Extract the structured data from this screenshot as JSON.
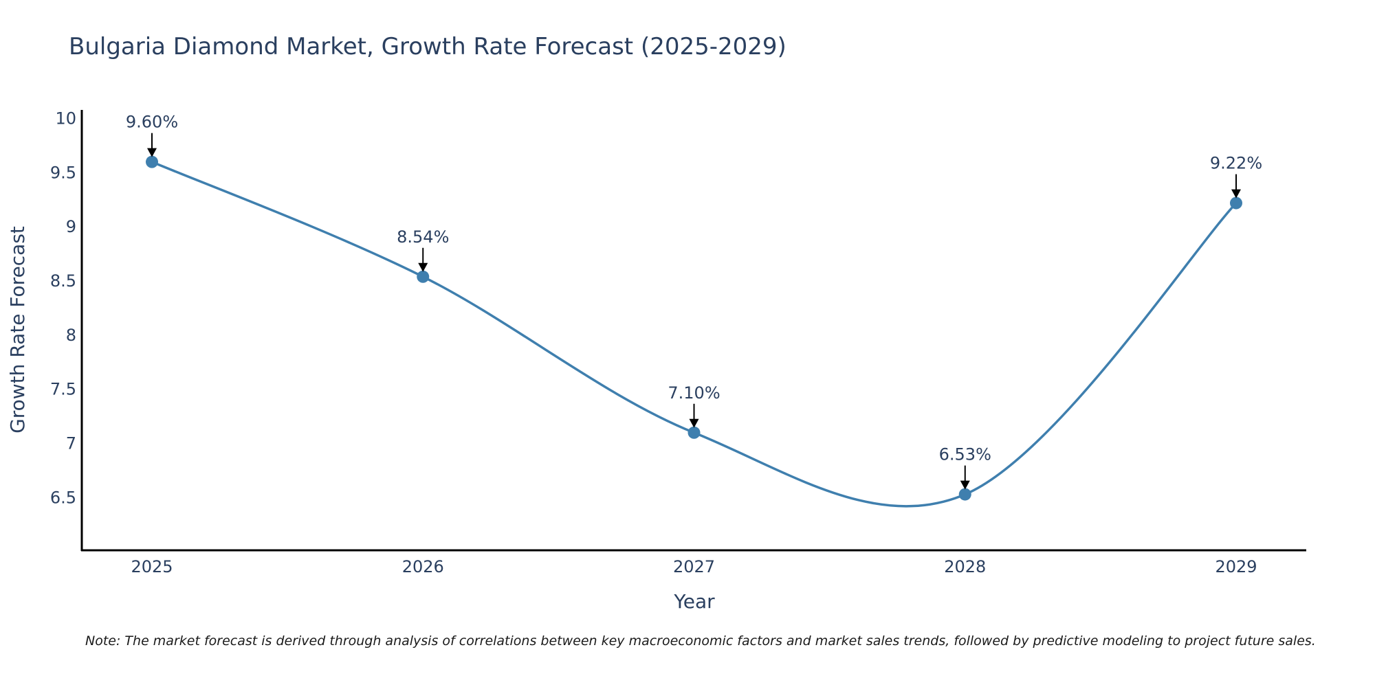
{
  "chart_data": {
    "type": "line",
    "title": "Bulgaria Diamond Market, Growth Rate Forecast (2025-2029)",
    "xlabel": "Year",
    "ylabel": "Growth Rate Forecast",
    "x": [
      "2025",
      "2026",
      "2027",
      "2028",
      "2029"
    ],
    "values": [
      9.6,
      8.54,
      7.1,
      6.53,
      9.22
    ],
    "data_labels": [
      "9.60%",
      "8.54%",
      "7.10%",
      "6.53%",
      "9.22%"
    ],
    "ylim": [
      6.02,
      10.08
    ],
    "yticks": [
      6.5,
      7,
      7.5,
      8,
      8.5,
      9,
      9.5,
      10
    ],
    "ytick_labels": [
      "6.5",
      "7",
      "7.5",
      "8",
      "8.5",
      "9",
      "9.5",
      "10"
    ],
    "grid": false,
    "legend": "none",
    "line_shape": "spline",
    "note": "Note: The market forecast is derived through analysis of correlations between key macroeconomic factors and market sales trends, followed by predictive modeling to project future sales.",
    "colors": {
      "line": "#3f7fae",
      "text": "#2a3f5f",
      "axis": "#000000",
      "arrow": "#000000"
    }
  }
}
